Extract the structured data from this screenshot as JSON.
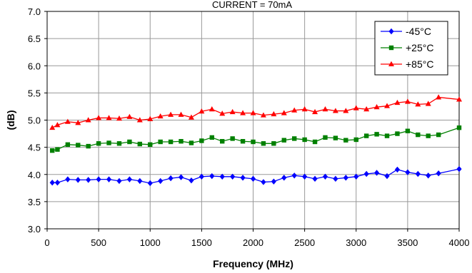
{
  "chart_data": {
    "type": "line",
    "title": "CURRENT = 70mA",
    "xlabel": "Frequency (MHz)",
    "ylabel": "(dB)",
    "xlim": [
      0,
      4000
    ],
    "ylim": [
      3.0,
      7.0
    ],
    "xticks": [
      0,
      500,
      1000,
      1500,
      2000,
      2500,
      3000,
      3500,
      4000
    ],
    "yticks": [
      3.0,
      3.5,
      4.0,
      4.5,
      5.0,
      5.5,
      6.0,
      6.5,
      7.0
    ],
    "xtick_labels": [
      "0",
      "500",
      "1000",
      "1500",
      "2000",
      "2500",
      "3000",
      "3500",
      "4000"
    ],
    "ytick_labels": [
      "3.0",
      "3.5",
      "4.0",
      "4.5",
      "5.0",
      "5.5",
      "6.0",
      "6.5",
      "7.0"
    ],
    "grid": true,
    "legend_position": "top-right",
    "x": [
      50,
      100,
      200,
      300,
      400,
      500,
      600,
      700,
      800,
      900,
      1000,
      1100,
      1200,
      1300,
      1400,
      1500,
      1600,
      1700,
      1800,
      1900,
      2000,
      2100,
      2200,
      2300,
      2400,
      2500,
      2600,
      2700,
      2800,
      2900,
      3000,
      3100,
      3200,
      3300,
      3400,
      3500,
      3600,
      3700,
      3800,
      4000
    ],
    "series": [
      {
        "name": "-45°C",
        "color": "#0000FF",
        "marker": "diamond",
        "values": [
          3.85,
          3.85,
          3.91,
          3.9,
          3.9,
          3.91,
          3.91,
          3.88,
          3.91,
          3.88,
          3.84,
          3.88,
          3.93,
          3.95,
          3.89,
          3.96,
          3.97,
          3.96,
          3.96,
          3.94,
          3.92,
          3.86,
          3.87,
          3.94,
          3.98,
          3.96,
          3.92,
          3.96,
          3.92,
          3.94,
          3.96,
          4.01,
          4.03,
          3.97,
          4.09,
          4.04,
          4.01,
          3.98,
          4.02,
          4.1
        ]
      },
      {
        "name": "+25°C",
        "color": "#008000",
        "marker": "square",
        "values": [
          4.44,
          4.46,
          4.55,
          4.54,
          4.52,
          4.57,
          4.58,
          4.57,
          4.6,
          4.56,
          4.55,
          4.6,
          4.6,
          4.61,
          4.58,
          4.62,
          4.68,
          4.61,
          4.66,
          4.61,
          4.6,
          4.57,
          4.57,
          4.63,
          4.66,
          4.64,
          4.6,
          4.68,
          4.67,
          4.63,
          4.64,
          4.71,
          4.74,
          4.71,
          4.75,
          4.8,
          4.73,
          4.71,
          4.73,
          4.86
        ]
      },
      {
        "name": "+85°C",
        "color": "#FF0000",
        "marker": "triangle",
        "values": [
          4.86,
          4.91,
          4.97,
          4.95,
          5.0,
          5.04,
          5.04,
          5.03,
          5.06,
          5.0,
          5.02,
          5.07,
          5.1,
          5.1,
          5.05,
          5.16,
          5.2,
          5.12,
          5.15,
          5.13,
          5.13,
          5.09,
          5.11,
          5.13,
          5.18,
          5.2,
          5.15,
          5.2,
          5.17,
          5.17,
          5.22,
          5.2,
          5.24,
          5.26,
          5.32,
          5.34,
          5.29,
          5.3,
          5.42,
          5.38
        ]
      }
    ]
  }
}
